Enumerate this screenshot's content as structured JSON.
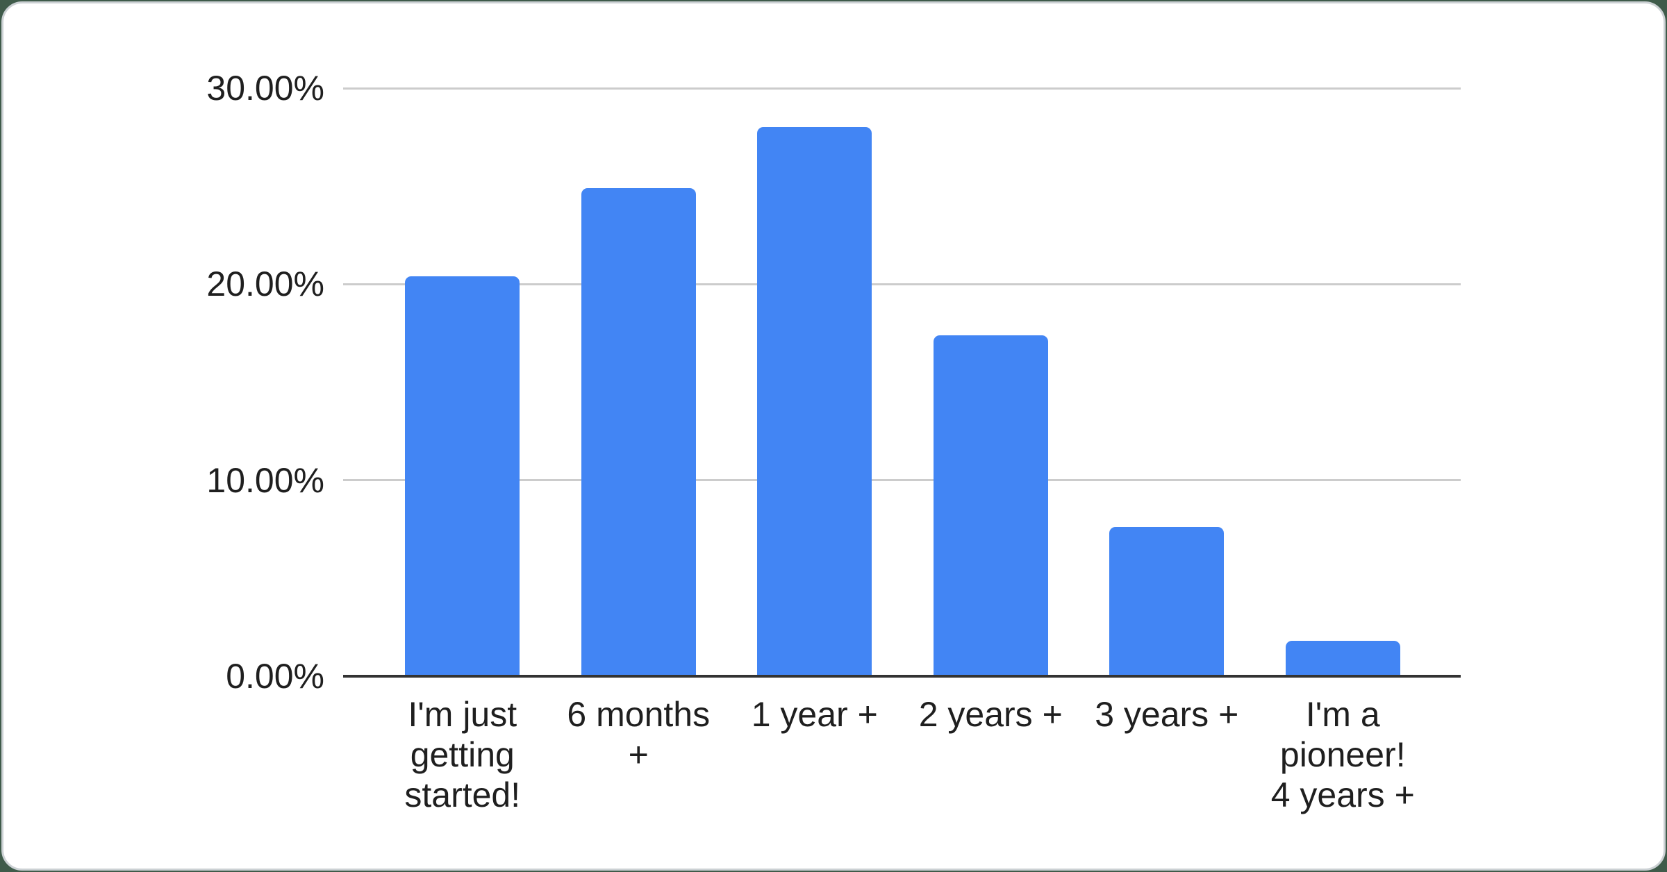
{
  "page": {
    "background_color": "#3f5b4a",
    "card_background": "#ffffff",
    "card_border_color": "#ccd1d4"
  },
  "chart_data": {
    "type": "bar",
    "title": "",
    "xlabel": "",
    "ylabel": "",
    "categories": [
      "I'm just getting started!",
      "6 months +",
      "1 year +",
      "2 years +",
      "3 years +",
      "I'm a pioneer! 4 years +"
    ],
    "values": [
      20.4,
      24.9,
      28.0,
      17.4,
      7.6,
      1.8
    ],
    "unit": "%",
    "ylim": [
      0,
      30
    ],
    "yticks": [
      {
        "value": 0,
        "label": "0.00%"
      },
      {
        "value": 10,
        "label": "10.00%"
      },
      {
        "value": 20,
        "label": "20.00%"
      },
      {
        "value": 30,
        "label": "30.00%"
      }
    ],
    "grid": true,
    "legend": "none",
    "bar_color": "#4285f4",
    "gridline_color": "#cccccc",
    "axis_line_color": "#333333",
    "label_color": "#1f1f1f"
  }
}
